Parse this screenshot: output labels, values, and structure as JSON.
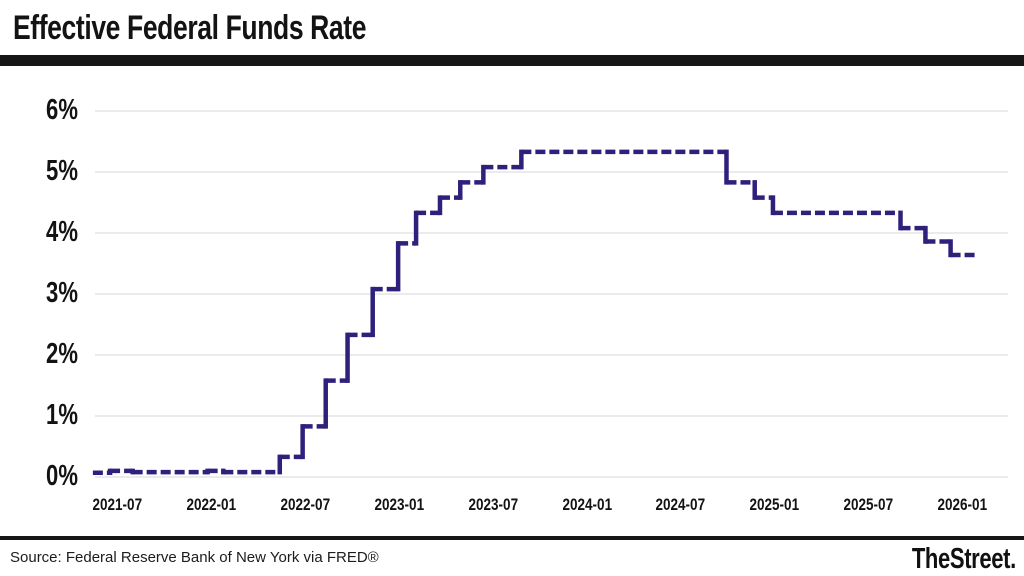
{
  "header": {
    "title": "Effective Federal Funds Rate"
  },
  "footer": {
    "source": "Source: Federal Reserve Bank of New York via FRED®",
    "brand": "TheStreet."
  },
  "chart_data": {
    "type": "line",
    "subtype": "step",
    "line_style": "dashed",
    "title": "Effective Federal Funds Rate",
    "xlabel": "",
    "ylabel": "",
    "ylim": [
      0,
      6
    ],
    "grid": true,
    "legend": "none",
    "line_color": "#2e217c",
    "grid_color": "#ebebeb",
    "rule_color": "#161616",
    "y_ticks": [
      {
        "label": "6%",
        "value": 6
      },
      {
        "label": "5%",
        "value": 5
      },
      {
        "label": "4%",
        "value": 4
      },
      {
        "label": "3%",
        "value": 3
      },
      {
        "label": "2%",
        "value": 2
      },
      {
        "label": "1%",
        "value": 1
      },
      {
        "label": "0%",
        "value": 0
      }
    ],
    "x_ticks": [
      {
        "label": "2021-07"
      },
      {
        "label": "2022-01"
      },
      {
        "label": "2022-07"
      },
      {
        "label": "2023-01"
      },
      {
        "label": "2023-07"
      },
      {
        "label": "2024-01"
      },
      {
        "label": "2024-07"
      },
      {
        "label": "2025-01"
      },
      {
        "label": "2025-07"
      },
      {
        "label": "2026-01"
      }
    ],
    "series": [
      {
        "name": "Effective Federal Funds Rate (%)",
        "steps": [
          {
            "date": "2021-05-15",
            "rate": 0.07
          },
          {
            "date": "2021-06-18",
            "rate": 0.1
          },
          {
            "date": "2021-08-01",
            "rate": 0.08
          },
          {
            "date": "2021-12-25",
            "rate": 0.1
          },
          {
            "date": "2022-01-25",
            "rate": 0.08
          },
          {
            "date": "2022-05-13",
            "rate": 0.33
          },
          {
            "date": "2022-06-27",
            "rate": 0.83
          },
          {
            "date": "2022-08-11",
            "rate": 1.58
          },
          {
            "date": "2022-09-23",
            "rate": 2.33
          },
          {
            "date": "2022-11-11",
            "rate": 3.08
          },
          {
            "date": "2022-12-30",
            "rate": 3.83
          },
          {
            "date": "2023-02-04",
            "rate": 4.33
          },
          {
            "date": "2023-03-20",
            "rate": 4.58
          },
          {
            "date": "2023-04-29",
            "rate": 4.83
          },
          {
            "date": "2023-06-13",
            "rate": 5.08
          },
          {
            "date": "2023-08-26",
            "rate": 5.33
          },
          {
            "date": "2024-09-29",
            "rate": 4.83
          },
          {
            "date": "2024-11-23",
            "rate": 4.58
          },
          {
            "date": "2024-12-28",
            "rate": 4.33
          },
          {
            "date": "2025-09-02",
            "rate": 4.08
          },
          {
            "date": "2025-10-20",
            "rate": 3.86
          },
          {
            "date": "2025-12-08",
            "rate": 3.64
          }
        ],
        "end_date": "2026-02-01"
      }
    ]
  }
}
